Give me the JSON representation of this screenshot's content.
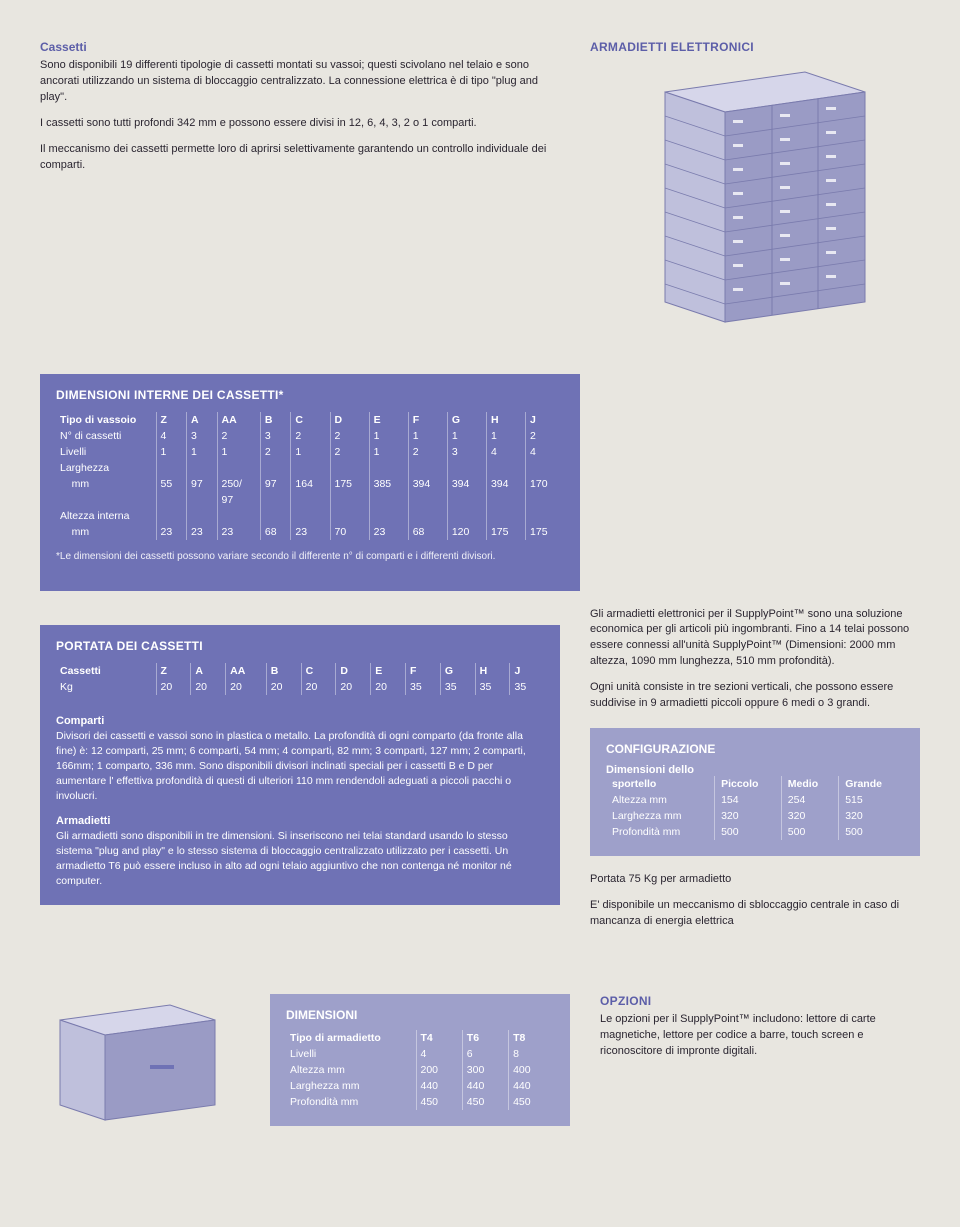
{
  "cassetti": {
    "heading": "Cassetti",
    "p1": "Sono disponibili 19 differenti tipologie di cassetti montati su vassoi; questi scivolano nel telaio e sono ancorati utilizzando un sistema di bloccaggio centralizzato. La connessione elettrica è di tipo \"plug and play\".",
    "p2": "I cassetti sono tutti profondi 342 mm e possono essere divisi in 12, 6, 4, 3, 2 o 1 comparti.",
    "p3": "Il meccanismo dei cassetti permette loro di aprirsi selettivamente garantendo un controllo individuale dei comparti."
  },
  "armadietti_heading": "ARMADIETTI ELETTRONICI",
  "dim_int": {
    "title": "DIMENSIONI INTERNE DEI CASSETTI*",
    "cols": [
      "Tipo di vassoio",
      "Z",
      "A",
      "AA",
      "B",
      "C",
      "D",
      "E",
      "F",
      "G",
      "H",
      "J"
    ],
    "rows": [
      [
        "N° di cassetti",
        "4",
        "3",
        "2",
        "3",
        "2",
        "2",
        "1",
        "1",
        "1",
        "1",
        "2"
      ],
      [
        "Livelli",
        "1",
        "1",
        "1",
        "2",
        "1",
        "2",
        "1",
        "2",
        "3",
        "4",
        "4"
      ],
      [
        "Larghezza",
        "",
        "",
        "",
        "",
        "",
        "",
        "",
        "",
        "",
        "",
        ""
      ],
      [
        "    mm",
        "55",
        "97",
        "250/",
        "97",
        "164",
        "175",
        "385",
        "394",
        "394",
        "394",
        "170"
      ],
      [
        "",
        "",
        "",
        "97",
        "",
        "",
        "",
        "",
        "",
        "",
        "",
        ""
      ],
      [
        "Altezza interna",
        "",
        "",
        "",
        "",
        "",
        "",
        "",
        "",
        "",
        "",
        ""
      ],
      [
        "    mm",
        "23",
        "23",
        "23",
        "68",
        "23",
        "70",
        "23",
        "68",
        "120",
        "175",
        "175"
      ]
    ],
    "footnote": "*Le dimensioni dei cassetti possono variare secondo il differente n° di comparti e i differenti divisori."
  },
  "portata": {
    "title": "PORTATA DEI CASSETTI",
    "cols": [
      "Cassetti",
      "Z",
      "A",
      "AA",
      "B",
      "C",
      "D",
      "E",
      "F",
      "G",
      "H",
      "J"
    ],
    "row": [
      "Kg",
      "20",
      "20",
      "20",
      "20",
      "20",
      "20",
      "20",
      "35",
      "35",
      "35",
      "35"
    ]
  },
  "comparti": {
    "heading": "Comparti",
    "text": "Divisori dei cassetti e vassoi sono in plastica o metallo. La profondità di ogni comparto (da fronte alla fine) è: 12 comparti, 25 mm; 6 comparti, 54 mm; 4 comparti, 82 mm; 3 comparti, 127 mm; 2 comparti, 166mm; 1 comparto, 336 mm. Sono disponibili divisori inclinati speciali per i cassetti B e D per aumentare l' effettiva profondità di questi di ulteriori 110 mm rendendoli adeguati a piccoli pacchi o involucri."
  },
  "armadietti_txt": {
    "heading": "Armadietti",
    "text": "Gli armadietti sono disponibili in tre dimensioni. Si inseriscono nei telai standard usando lo stesso sistema \"plug and play\" e lo stesso sistema di bloccaggio centralizzato utilizzato per i cassetti. Un armadietto T6 può essere incluso in alto ad ogni telaio aggiuntivo che non contenga né monitor né computer."
  },
  "right_desc": {
    "p1": "Gli armadietti elettronici per il SupplyPoint™ sono una soluzione economica per gli articoli più ingombranti. Fino a 14 telai possono essere connessi all'unità SupplyPoint™ (Dimensioni: 2000 mm altezza, 1090 mm lunghezza, 510 mm profondità).",
    "p2": "Ogni unità consiste in tre sezioni verticali, che possono essere suddivise in 9 armadietti piccoli oppure 6 medi o 3 grandi."
  },
  "config": {
    "title": "CONFIGURAZIONE",
    "sub": "Dimensioni dello",
    "cols": [
      "sportello",
      "Piccolo",
      "Medio",
      "Grande"
    ],
    "rows": [
      [
        "Altezza mm",
        "154",
        "254",
        "515"
      ],
      [
        "Larghezza mm",
        "320",
        "320",
        "320"
      ],
      [
        "Profondità mm",
        "500",
        "500",
        "500"
      ]
    ],
    "extra1": "Portata 75 Kg per armadietto",
    "extra2": "E' disponibile un meccanismo di sbloccaggio centrale in caso di mancanza di energia elettrica"
  },
  "dim_locker": {
    "title": "DIMENSIONI",
    "cols": [
      "Tipo di armadietto",
      "T4",
      "T6",
      "T8"
    ],
    "rows": [
      [
        "Livelli",
        "4",
        "6",
        "8"
      ],
      [
        "Altezza mm",
        "200",
        "300",
        "400"
      ],
      [
        "Larghezza mm",
        "440",
        "440",
        "440"
      ],
      [
        "Profondità mm",
        "450",
        "450",
        "450"
      ]
    ]
  },
  "opzioni": {
    "title": "OPZIONI",
    "text": "Le opzioni per il SupplyPoint™ includono: lettore di carte magnetiche, lettore per codice a barre, touch screen e riconoscitore di impronte digitali."
  },
  "colors": {
    "blue_heading": "#5c5ea8",
    "panel_blue": "#6f72b5",
    "panel_lav": "#9ea0ca",
    "bg": "#e8e6e0",
    "locker_face": "#bfc0dc",
    "locker_side": "#8a8bb8",
    "locker_top": "#d6d6ea",
    "locker_line": "#7a7bad"
  }
}
